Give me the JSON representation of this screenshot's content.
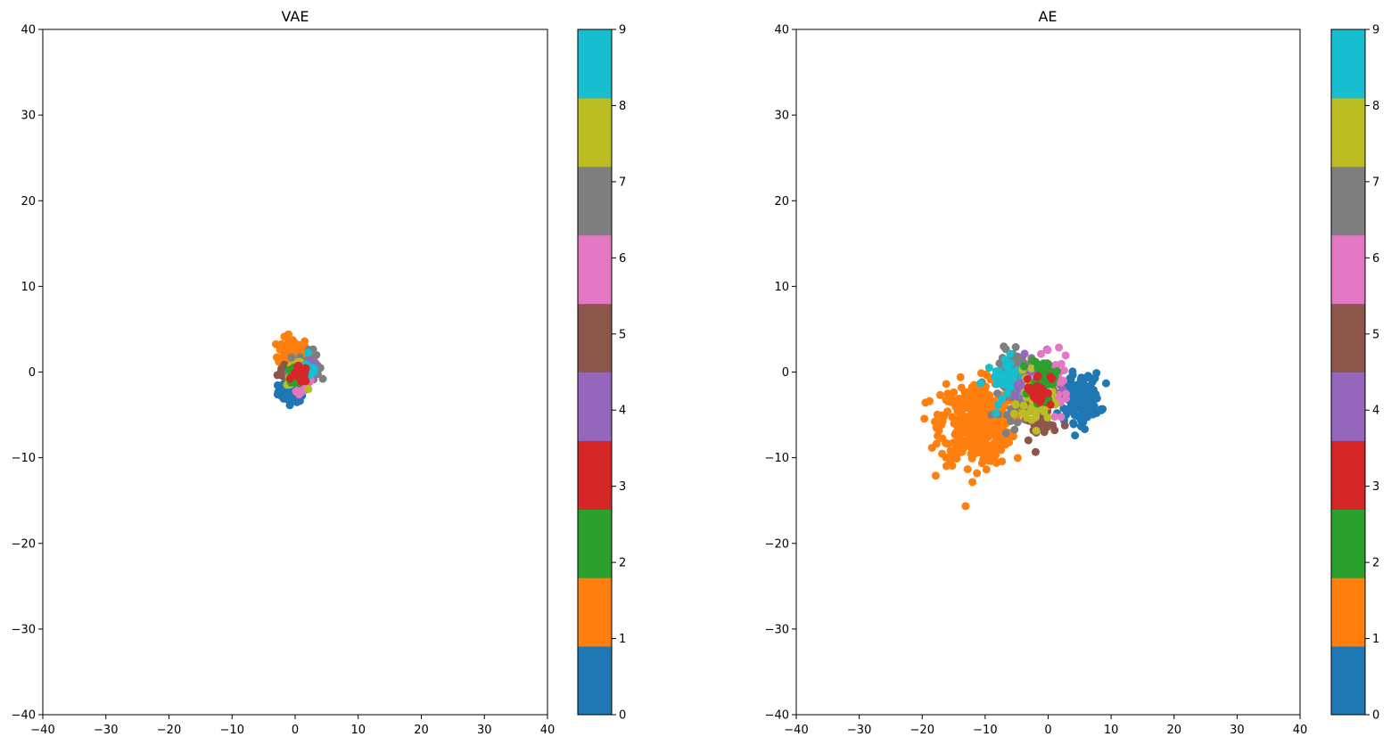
{
  "chart_data": [
    {
      "type": "scatter",
      "title": "VAE",
      "xlabel": "",
      "ylabel": "",
      "xlim": [
        -40,
        40
      ],
      "ylim": [
        -40,
        40
      ],
      "xticks": [
        -40,
        -30,
        -20,
        -10,
        0,
        10,
        20,
        30,
        40
      ],
      "yticks": [
        -40,
        -30,
        -20,
        -10,
        0,
        10,
        20,
        30,
        40
      ],
      "grid": false,
      "colorbar": {
        "ticks": [
          0,
          1,
          2,
          3,
          4,
          5,
          6,
          7,
          8,
          9
        ],
        "colors": [
          "#1f77b4",
          "#ff7f0e",
          "#2ca02c",
          "#d62728",
          "#9467bd",
          "#8c564b",
          "#e377c2",
          "#7f7f7f",
          "#bcbd22",
          "#17becf"
        ]
      },
      "clusters": [
        {
          "label": 0,
          "cx": -0.5,
          "cy": -2.3,
          "sx": 1.1,
          "sy": 0.6,
          "n": 70
        },
        {
          "label": 1,
          "cx": -0.3,
          "cy": 2.4,
          "sx": 1.2,
          "sy": 0.8,
          "n": 90
        },
        {
          "label": 7,
          "cx": 2.2,
          "cy": 0.8,
          "sx": 0.8,
          "sy": 0.8,
          "n": 50
        },
        {
          "label": 5,
          "cx": -1.8,
          "cy": 0.0,
          "sx": 0.5,
          "sy": 0.5,
          "n": 25
        },
        {
          "label": 4,
          "cx": 1.5,
          "cy": -0.3,
          "sx": 0.9,
          "sy": 0.7,
          "n": 40
        },
        {
          "label": 6,
          "cx": 1.0,
          "cy": -1.0,
          "sx": 0.9,
          "sy": 0.6,
          "n": 35
        },
        {
          "label": 8,
          "cx": 0.3,
          "cy": -0.2,
          "sx": 0.8,
          "sy": 0.7,
          "n": 35
        },
        {
          "label": 9,
          "cx": 2.3,
          "cy": 0.3,
          "sx": 0.6,
          "sy": 0.6,
          "n": 25
        },
        {
          "label": 2,
          "cx": 0.0,
          "cy": -0.5,
          "sx": 0.7,
          "sy": 0.5,
          "n": 35
        },
        {
          "label": 3,
          "cx": 0.8,
          "cy": -0.3,
          "sx": 0.6,
          "sy": 0.5,
          "n": 30
        }
      ]
    },
    {
      "type": "scatter",
      "title": "AE",
      "xlabel": "",
      "ylabel": "",
      "xlim": [
        -40,
        40
      ],
      "ylim": [
        -40,
        40
      ],
      "xticks": [
        -40,
        -30,
        -20,
        -10,
        0,
        10,
        20,
        30,
        40
      ],
      "yticks": [
        -40,
        -30,
        -20,
        -10,
        0,
        10,
        20,
        30,
        40
      ],
      "grid": false,
      "colorbar": {
        "ticks": [
          0,
          1,
          2,
          3,
          4,
          5,
          6,
          7,
          8,
          9
        ],
        "colors": [
          "#1f77b4",
          "#ff7f0e",
          "#2ca02c",
          "#d62728",
          "#9467bd",
          "#8c564b",
          "#e377c2",
          "#7f7f7f",
          "#bcbd22",
          "#17becf"
        ]
      },
      "clusters": [
        {
          "label": 1,
          "cx": -11.5,
          "cy": -6.0,
          "sx": 2.8,
          "sy": 2.4,
          "n": 420
        },
        {
          "label": 0,
          "cx": 5.0,
          "cy": -3.0,
          "sx": 1.6,
          "sy": 1.4,
          "n": 150
        },
        {
          "label": 7,
          "cx": -4.5,
          "cy": -1.5,
          "sx": 1.6,
          "sy": 2.0,
          "n": 110
        },
        {
          "label": 9,
          "cx": -5.5,
          "cy": -1.0,
          "sx": 2.2,
          "sy": 1.3,
          "n": 50
        },
        {
          "label": 4,
          "cx": -2.0,
          "cy": -1.0,
          "sx": 1.6,
          "sy": 1.4,
          "n": 70
        },
        {
          "label": 6,
          "cx": 0.5,
          "cy": -1.5,
          "sx": 1.4,
          "sy": 1.5,
          "n": 60
        },
        {
          "label": 5,
          "cx": -1.5,
          "cy": -5.5,
          "sx": 1.4,
          "sy": 1.8,
          "n": 40
        },
        {
          "label": 8,
          "cx": -2.0,
          "cy": -3.5,
          "sx": 1.4,
          "sy": 1.5,
          "n": 50
        },
        {
          "label": 2,
          "cx": -0.8,
          "cy": -1.0,
          "sx": 1.0,
          "sy": 1.3,
          "n": 45
        },
        {
          "label": 3,
          "cx": -1.5,
          "cy": -2.0,
          "sx": 1.0,
          "sy": 1.0,
          "n": 30
        }
      ]
    }
  ]
}
